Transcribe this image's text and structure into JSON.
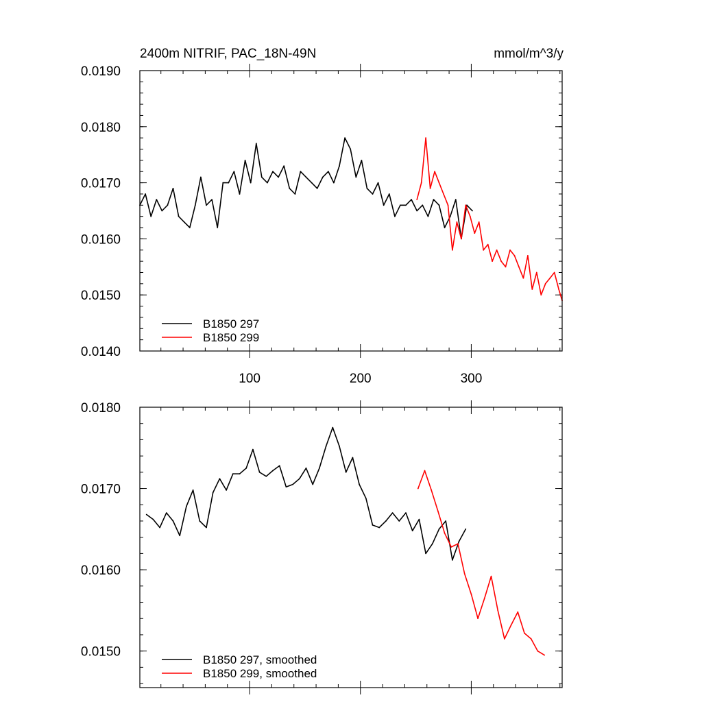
{
  "chart_data": [
    {
      "type": "line",
      "title": "2400m NITRIF, PAC_18N-49N",
      "units": "mmol/m^3/y",
      "xlabel": "",
      "ylabel": "",
      "xlim": [
        1,
        382
      ],
      "ylim": [
        0.014,
        0.019
      ],
      "x_ticks": [
        100,
        200,
        300
      ],
      "x_tick_labels": [
        "100",
        "200",
        "300"
      ],
      "y_ticks": [
        0.014,
        0.015,
        0.016,
        0.017,
        0.018,
        0.019
      ],
      "y_tick_labels": [
        "0.0140",
        "0.0150",
        "0.0160",
        "0.0170",
        "0.0180",
        "0.0190"
      ],
      "legend_position": "bottom-left",
      "series": [
        {
          "name": "B1850 297",
          "color": "#000000",
          "x_start": 1,
          "x_step": 5,
          "values": [
            0.0166,
            0.0168,
            0.0164,
            0.0167,
            0.0165,
            0.0166,
            0.0169,
            0.0164,
            0.0163,
            0.0162,
            0.0166,
            0.0171,
            0.0166,
            0.0167,
            0.0162,
            0.017,
            0.017,
            0.0172,
            0.0168,
            0.0174,
            0.017,
            0.0177,
            0.0171,
            0.017,
            0.0172,
            0.0171,
            0.0173,
            0.0169,
            0.0168,
            0.0172,
            0.0171,
            0.017,
            0.0169,
            0.0171,
            0.0172,
            0.017,
            0.0173,
            0.0178,
            0.0176,
            0.0171,
            0.0174,
            0.0169,
            0.0168,
            0.017,
            0.0166,
            0.0168,
            0.0164,
            0.0166,
            0.0166,
            0.0167,
            0.0165,
            0.0166,
            0.0164,
            0.0167,
            0.0166,
            0.0162,
            0.0164,
            0.0167,
            0.016,
            0.0166,
            0.0165
          ]
        },
        {
          "name": "B1850 299",
          "color": "#ff0000",
          "x_start": 251,
          "x_step": 4,
          "values": [
            0.0167,
            0.017,
            0.0178,
            0.0169,
            0.0172,
            0.017,
            0.0168,
            0.0166,
            0.0158,
            0.0163,
            0.016,
            0.0166,
            0.0164,
            0.0161,
            0.0163,
            0.0158,
            0.0159,
            0.0156,
            0.0158,
            0.0156,
            0.0155,
            0.0158,
            0.0157,
            0.0155,
            0.0153,
            0.0157,
            0.0151,
            0.0154,
            0.015,
            0.0152,
            0.0153,
            0.0154,
            0.0151,
            0.0149
          ]
        }
      ]
    },
    {
      "type": "line",
      "title": "",
      "xlabel": "",
      "ylabel": "",
      "xlim": [
        1,
        382
      ],
      "ylim": [
        0.01455,
        0.018
      ],
      "x_ticks": [
        100,
        200,
        300
      ],
      "x_tick_labels": [
        "",
        "",
        ""
      ],
      "y_ticks": [
        0.015,
        0.016,
        0.017,
        0.018
      ],
      "y_tick_labels": [
        "0.0150",
        "0.0160",
        "0.0170",
        "0.0180"
      ],
      "legend_position": "bottom-left",
      "series": [
        {
          "name": "B1850 297, smoothed",
          "color": "#000000",
          "x_start": 7,
          "x_step": 6,
          "values": [
            0.01668,
            0.01662,
            0.01652,
            0.0167,
            0.0166,
            0.01642,
            0.01678,
            0.01698,
            0.0166,
            0.01652,
            0.01695,
            0.01712,
            0.01698,
            0.01718,
            0.01718,
            0.01725,
            0.01748,
            0.0172,
            0.01715,
            0.01722,
            0.01728,
            0.01702,
            0.01705,
            0.01712,
            0.01725,
            0.01705,
            0.01725,
            0.01752,
            0.01775,
            0.01752,
            0.0172,
            0.01738,
            0.01705,
            0.01688,
            0.01655,
            0.01652,
            0.0166,
            0.0167,
            0.0166,
            0.0167,
            0.01648,
            0.01662,
            0.0162,
            0.01632,
            0.0165,
            0.0166,
            0.01612,
            0.01635,
            0.0165
          ]
        },
        {
          "name": "B1850 299, smoothed",
          "color": "#ff0000",
          "x_start": 252,
          "x_step": 6,
          "values": [
            0.017,
            0.01722,
            0.01698,
            0.01672,
            0.01645,
            0.01628,
            0.01632,
            0.01595,
            0.0157,
            0.0154,
            0.01565,
            0.01592,
            0.0155,
            0.01515,
            0.01532,
            0.01548,
            0.01522,
            0.01515,
            0.015,
            0.01495
          ]
        }
      ]
    }
  ]
}
